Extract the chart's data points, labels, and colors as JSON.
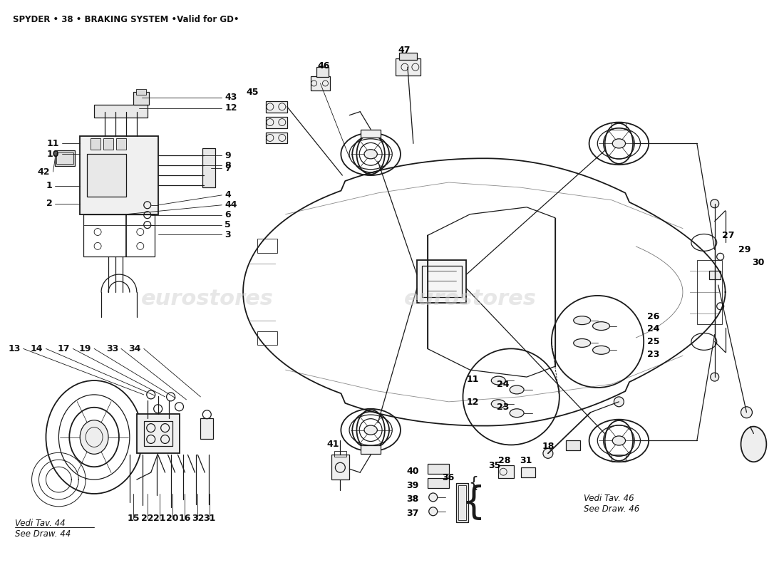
{
  "title": "SPYDER • 38 • BRAKING SYSTEM •Valid for GD•",
  "title_fontsize": 8.5,
  "title_fontweight": "bold",
  "bg_color": "#ffffff",
  "line_color": "#1a1a1a",
  "label_color": "#111111",
  "watermark_color": "#d0d0d0",
  "vedi_tav_44": "Vedi Tav. 44\nSee Draw. 44",
  "vedi_tav_46": "Vedi Tav. 46\nSee Draw. 46"
}
